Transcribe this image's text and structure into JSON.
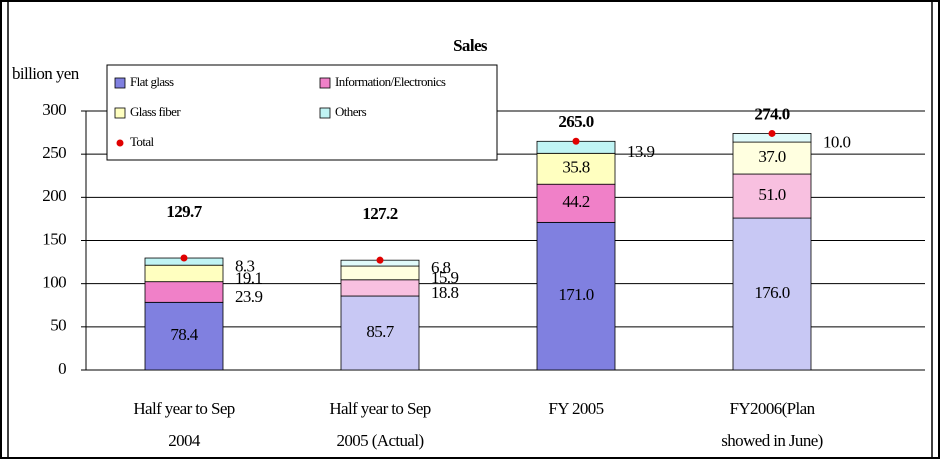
{
  "chart_data": {
    "type": "stacked-bar",
    "title": "Sales",
    "y_label": "billion yen",
    "categories": [
      [
        "Half year to Sep",
        "2004"
      ],
      [
        "Half year to Sep",
        "2005 (Actual)"
      ],
      [
        "FY 2005"
      ],
      [
        "FY2006(Plan",
        "showed in June)"
      ]
    ],
    "series": [
      {
        "name": "Flat glass",
        "color": "#8080e0",
        "colors": [
          "#8080e0",
          "#c8c8f4",
          "#8080e0",
          "#c8c8f4"
        ],
        "values": [
          78.4,
          85.7,
          171,
          176
        ],
        "value_labels": [
          "78.4",
          "85.7",
          "171.0",
          "176.0"
        ]
      },
      {
        "name": "Information/Electronics",
        "color": "#f080c8",
        "colors": [
          "#f080c8",
          "#f8c0e0",
          "#f080c8",
          "#f8c0e0"
        ],
        "values": [
          23.9,
          18.8,
          44.2,
          51
        ],
        "value_labels": [
          "23.9",
          "18.8",
          "44.2",
          "51.0"
        ]
      },
      {
        "name": "Glass fiber",
        "color": "#ffffc0",
        "colors": [
          "#ffffc0",
          "#ffffe0",
          "#ffffc0",
          "#ffffe0"
        ],
        "values": [
          19.1,
          15.9,
          35.8,
          37
        ],
        "value_labels": [
          "19.1",
          "15.9",
          "35.8",
          "37.0"
        ]
      },
      {
        "name": "Others",
        "color": "#c0f4f4",
        "colors": [
          "#c0f4f4",
          "#e0fafa",
          "#c0f4f4",
          "#e0fafa"
        ],
        "values": [
          8.3,
          6.8,
          13.9,
          10
        ],
        "value_labels": [
          "8.3",
          "6.8",
          "13.9",
          "10.0"
        ]
      }
    ],
    "total": {
      "name": "Total",
      "color": "#e00000",
      "values": [
        129.7,
        127.2,
        265,
        274
      ],
      "value_labels": [
        "129.7",
        "127.2",
        "265.0",
        "274.0"
      ]
    },
    "ylim": [
      0,
      300
    ],
    "yticks": [
      0,
      50,
      100,
      150,
      200,
      250,
      300
    ],
    "grid": true
  }
}
